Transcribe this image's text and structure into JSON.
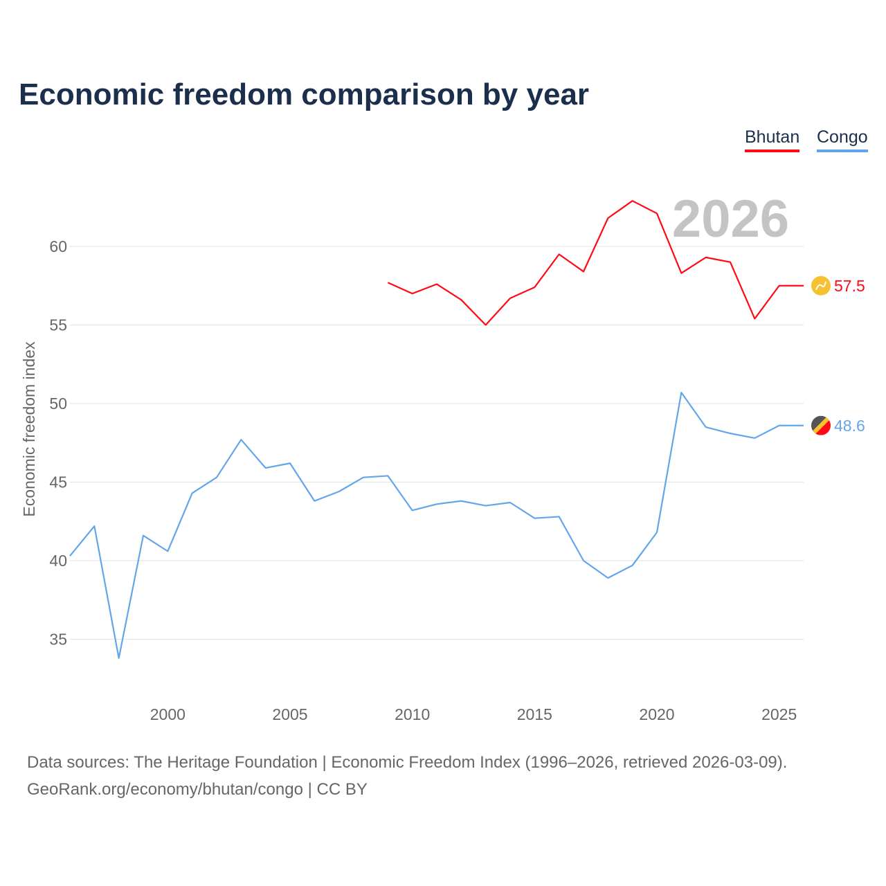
{
  "title": "Economic freedom comparison by year",
  "legend": [
    {
      "name": "Bhutan",
      "color": "#ff0a14"
    },
    {
      "name": "Congo",
      "color": "#61a6eb"
    }
  ],
  "year_watermark": "2026",
  "footer": {
    "line1": "Data sources: The Heritage Foundation | Economic Freedom Index (1996–2026, retrieved 2026-03-09).",
    "line2": "GeoRank.org/economy/bhutan/congo | CC BY"
  },
  "chart_data": {
    "type": "line",
    "title": "Economic freedom comparison by year",
    "xlabel": "",
    "ylabel": "Economic freedom index",
    "xlim": [
      1996,
      2026
    ],
    "ylim": [
      31.2,
      65.1
    ],
    "xticks": [
      2000,
      2005,
      2010,
      2015,
      2020,
      2025
    ],
    "yticks": [
      35,
      40,
      45,
      50,
      55,
      60
    ],
    "grid": true,
    "legend_position": "top-right",
    "series": [
      {
        "name": "Bhutan",
        "color": "#ff0a14",
        "end_label": "57.5",
        "flag_icon": "bhutan-flag-icon",
        "x": [
          2009,
          2010,
          2011,
          2012,
          2013,
          2014,
          2015,
          2016,
          2017,
          2018,
          2019,
          2020,
          2021,
          2022,
          2023,
          2024,
          2025,
          2026
        ],
        "y": [
          57.7,
          57.0,
          57.6,
          56.6,
          55.0,
          56.7,
          57.4,
          59.5,
          58.4,
          61.8,
          62.9,
          62.1,
          58.3,
          59.3,
          59.0,
          55.4,
          57.5,
          57.5
        ]
      },
      {
        "name": "Congo",
        "color": "#61a6eb",
        "end_label": "48.6",
        "flag_icon": "congo-flag-icon",
        "x": [
          1996,
          1997,
          1998,
          1999,
          2000,
          2001,
          2002,
          2003,
          2004,
          2005,
          2006,
          2007,
          2008,
          2009,
          2010,
          2011,
          2012,
          2013,
          2014,
          2015,
          2016,
          2017,
          2018,
          2019,
          2020,
          2021,
          2022,
          2023,
          2024,
          2025,
          2026
        ],
        "y": [
          40.3,
          42.2,
          33.8,
          41.6,
          40.6,
          44.3,
          45.3,
          47.7,
          45.9,
          46.2,
          43.8,
          44.4,
          45.3,
          45.4,
          43.2,
          43.6,
          43.8,
          43.5,
          43.7,
          42.7,
          42.8,
          40.0,
          38.9,
          39.7,
          41.8,
          50.7,
          48.5,
          48.1,
          47.8,
          48.6,
          48.6
        ]
      }
    ]
  }
}
